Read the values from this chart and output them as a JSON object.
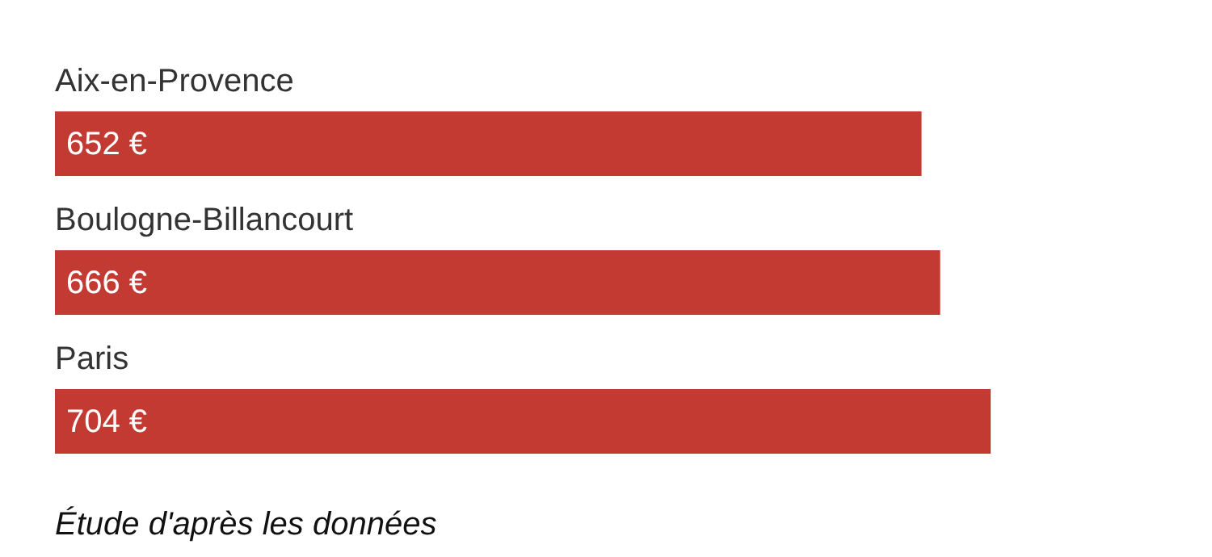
{
  "chart_data": {
    "type": "bar",
    "orientation": "horizontal",
    "categories": [
      "Aix-en-Provence",
      "Boulogne-Billancourt",
      "Paris"
    ],
    "values": [
      652,
      666,
      704
    ],
    "value_labels": [
      "652 €",
      "666 €",
      "704 €"
    ],
    "color": "#c33a33",
    "annotations": [
      "Étude d'après les données"
    ]
  }
}
